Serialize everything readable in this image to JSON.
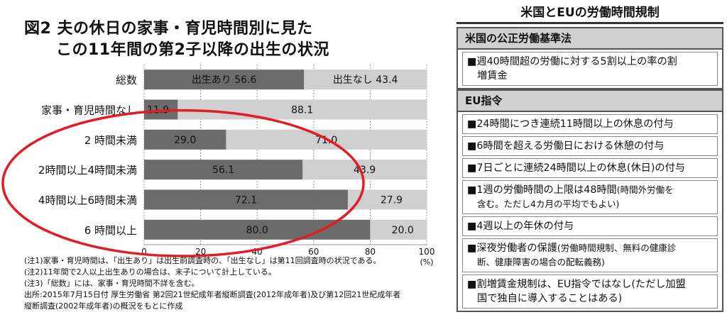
{
  "figure": {
    "title_line1": "図2 夫の休日の家事・育児時間別に見た",
    "title_line2": "この11年間の第2子以降の出生の状況"
  },
  "chart_data": {
    "type": "bar",
    "orientation": "horizontal",
    "stacked": true,
    "categories": [
      "総数",
      "家事・育児時間なし",
      "2 時間未満",
      "2時間以上4時間未満",
      "4時間以上6時間未満",
      "6 時間以上"
    ],
    "series": [
      {
        "name": "出生あり",
        "values": [
          56.6,
          11.9,
          29.0,
          56.1,
          72.1,
          80.0
        ],
        "color": "#6b6b6b"
      },
      {
        "name": "出生なし",
        "values": [
          43.4,
          88.1,
          71.0,
          43.9,
          27.9,
          20.0
        ],
        "color": "#cfcfcf"
      }
    ],
    "total_bar_labels": [
      "出生あり 56.6",
      "出生なし 43.4"
    ],
    "value_labels": [
      "11.9",
      "88.1",
      "29.0",
      "71.0",
      "56.1",
      "43.9",
      "72.1",
      "27.9",
      "80.0",
      "20.0"
    ],
    "xticks": [
      0,
      20,
      40,
      60,
      80,
      100
    ],
    "xtick_labels": [
      "0",
      "20",
      "40",
      "60",
      "80",
      "100"
    ],
    "xunit": "(%)",
    "xlim": [
      0,
      100
    ],
    "grid": true,
    "highlight_ellipse_color": "#e31b23"
  },
  "notes": [
    "(注1)家事・育児時間は、「出生あり」は出生前調査時の、「出生なし」は第11回調査時の状況である。",
    "(注2)11年間で2人以上出生ありの場合は、末子について計上している。",
    "(注3)「総数」には、家事・育児時間不詳を含む。",
    "出所:2015年7月15日付 厚生労働省 第2回21世紀成年者縦断調査(2012年成年者)及び第12回21世紀成年者",
    "縦断調査(2002年成年者)の概況をもとに作成"
  ],
  "panel": {
    "title": "米国とEUの労働時間規制",
    "us": {
      "heading": "米国の公正労働基準法",
      "items": [
        {
          "bullet": "■",
          "line1": "週40時間超の労働に対する5割以上の率の割",
          "line2": "増賃金"
        }
      ]
    },
    "eu": {
      "heading": "EU指令",
      "items": [
        {
          "bullet": "■",
          "line1": "24時間につき連続11時間以上の休息の付与"
        },
        {
          "bullet": "■",
          "line1": "6時間を超える労働日における休憩の付与"
        },
        {
          "bullet": "■",
          "line1": "7日ごとに連続24時間以上の休息(休日)の付与"
        },
        {
          "bullet": "■",
          "line1": "1週の労働時間の上限は48時間",
          "line1b": "(時間外労働を",
          "line2": "含む。ただし4カ月の平均でもよい)"
        },
        {
          "bullet": "■",
          "line1": "4週以上の年休の付与"
        },
        {
          "bullet": "■",
          "line1": "深夜労働者の保護",
          "line1b": "(労働時間規制、無料の健康診",
          "line2": "断、健康障害の場合の配転義務)"
        },
        {
          "bullet": "■",
          "line1": "割増賃金規制は、EU指令ではなし(ただし加盟",
          "line2": "国で独自に導入することはある)"
        }
      ]
    }
  }
}
